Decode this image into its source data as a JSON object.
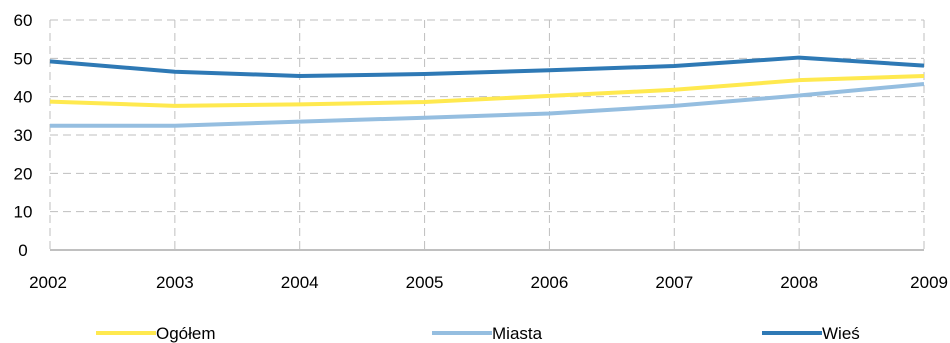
{
  "chart_data": {
    "type": "line",
    "title": "",
    "xlabel": "",
    "ylabel": "",
    "x": [
      "2002",
      "2003",
      "2004",
      "2005",
      "2006",
      "2007",
      "2008",
      "2009"
    ],
    "ylim": [
      0,
      60
    ],
    "yticks": [
      "0",
      "10",
      "20",
      "30",
      "40",
      "50",
      "60"
    ],
    "grid": "horizontal and vertical, dashed",
    "legend_position": "bottom",
    "series": [
      {
        "name": "Ogółem",
        "color": "#FFE94F",
        "values": [
          38.7,
          37.6,
          38.0,
          38.6,
          40.2,
          41.8,
          44.3,
          45.4
        ]
      },
      {
        "name": "Miasta",
        "color": "#95BEE0",
        "values": [
          32.4,
          32.4,
          33.5,
          34.5,
          35.6,
          37.6,
          40.3,
          43.3
        ]
      },
      {
        "name": "Wieś",
        "color": "#2E79B5",
        "values": [
          49.2,
          46.5,
          45.4,
          45.9,
          46.9,
          48.0,
          50.2,
          48.1
        ]
      }
    ]
  }
}
